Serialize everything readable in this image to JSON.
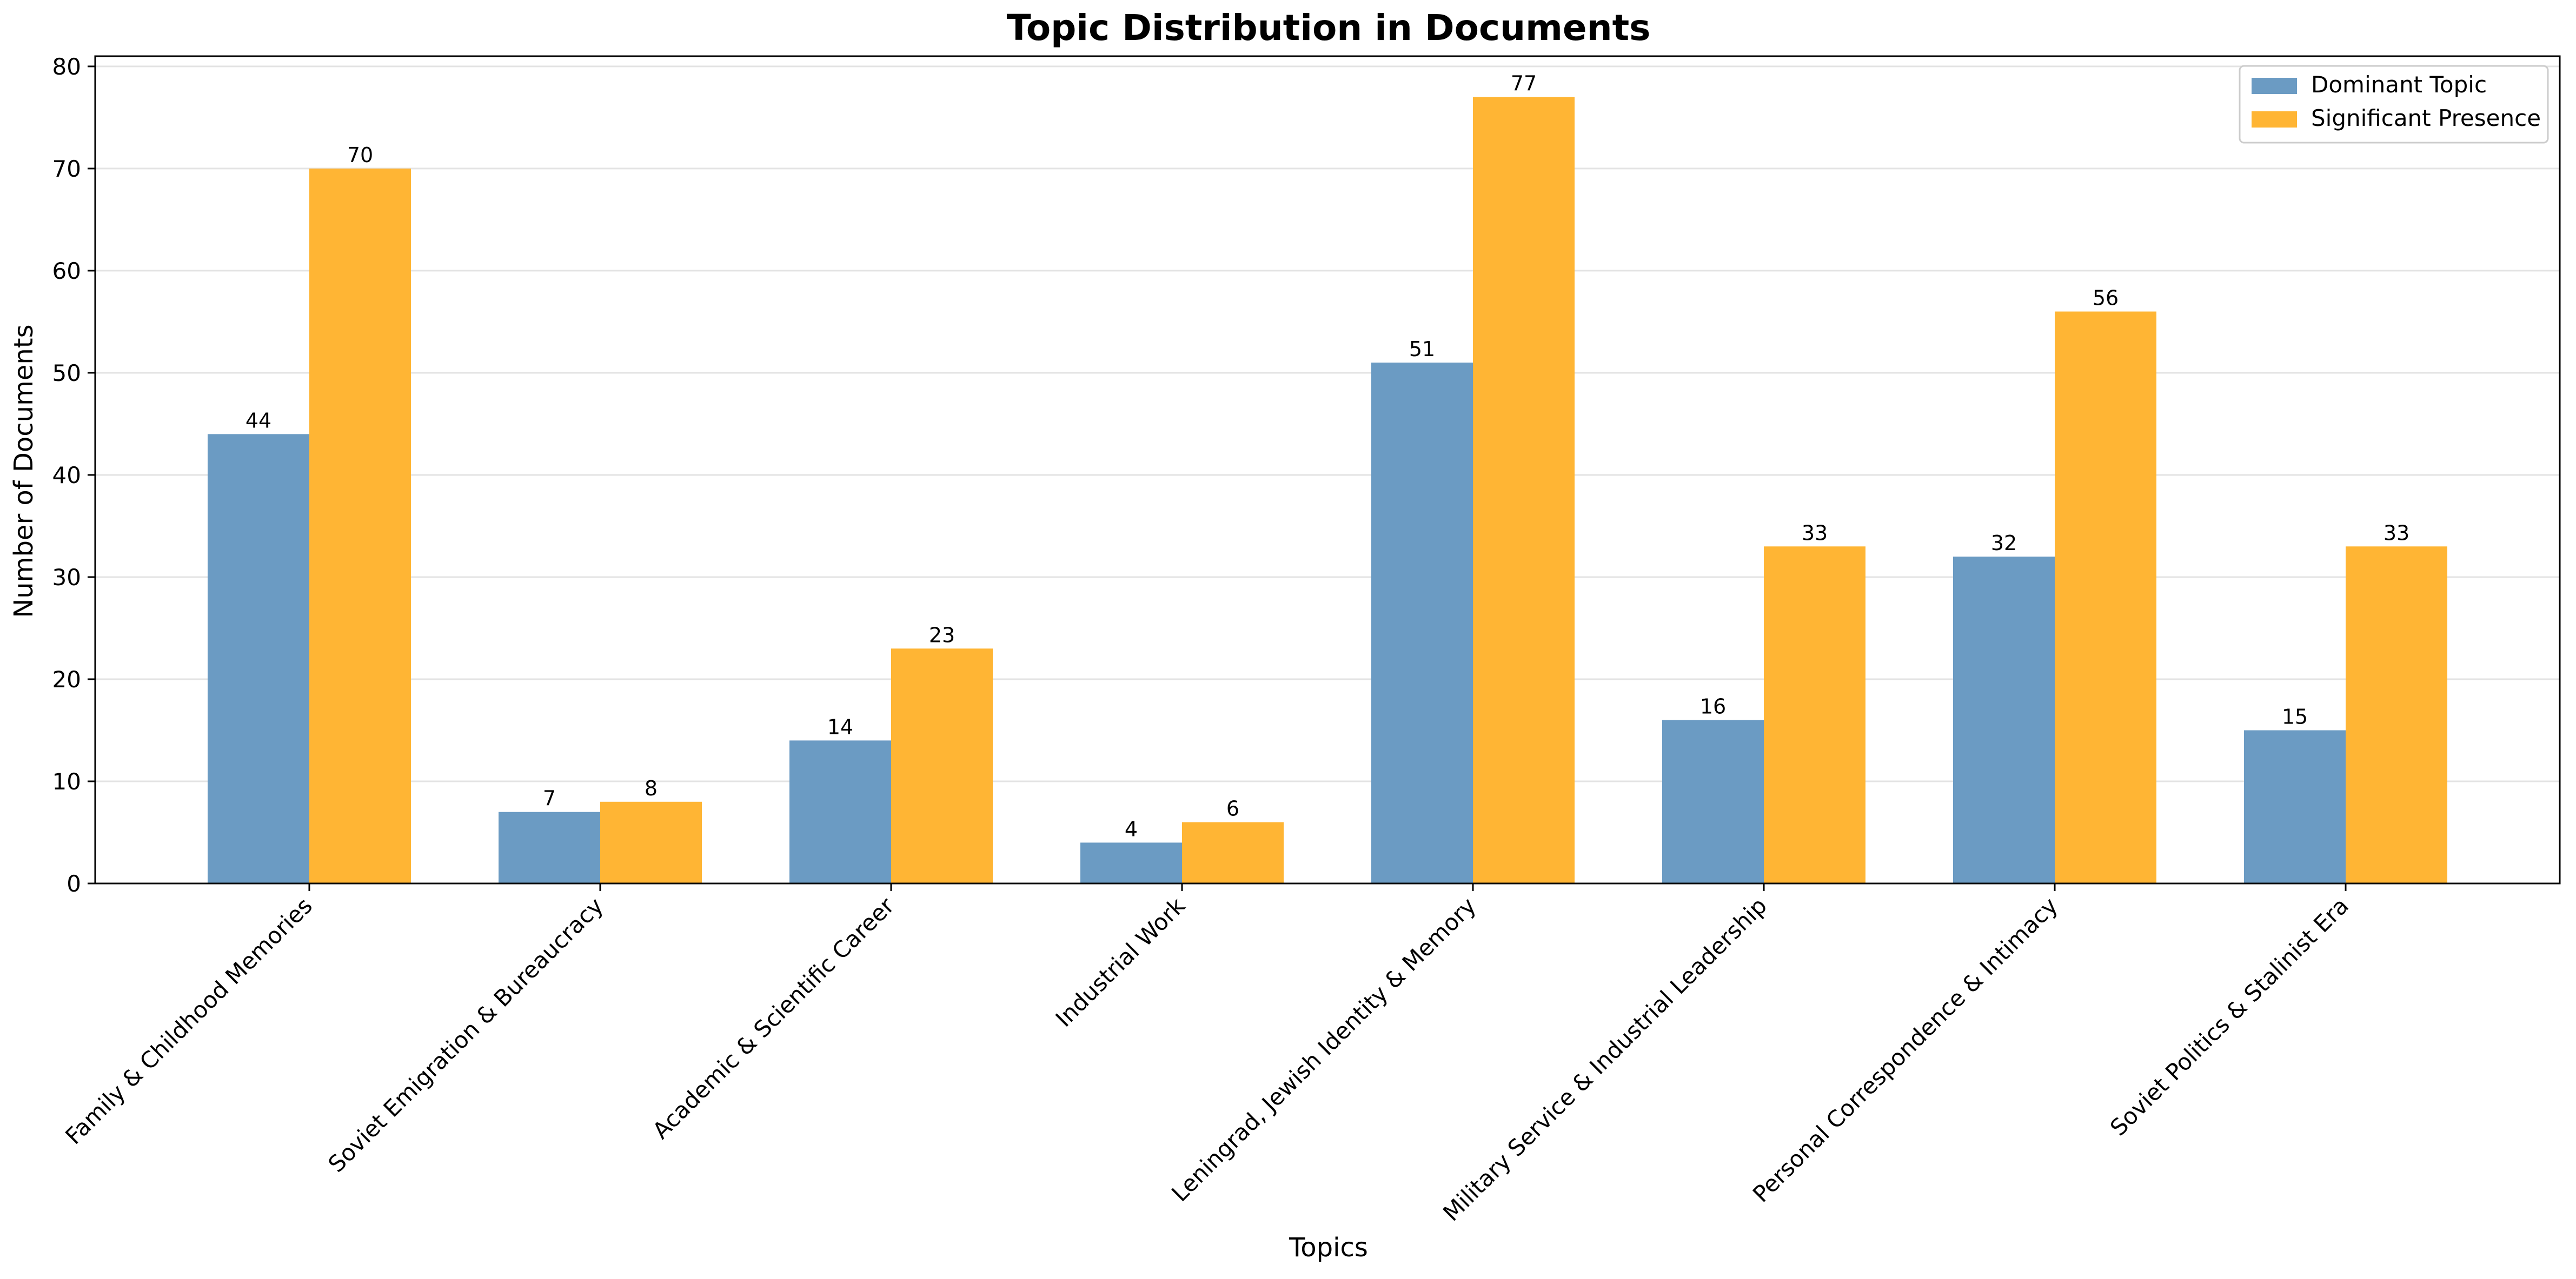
{
  "chart_data": {
    "type": "bar",
    "title": "Topic Distribution in Documents",
    "xlabel": "Topics",
    "ylabel": "Number of Documents",
    "ylim": [
      0,
      81
    ],
    "yticks": [
      0,
      10,
      20,
      30,
      40,
      50,
      60,
      70,
      80
    ],
    "grid": "horizontal",
    "legend_position": "top-right",
    "categories": [
      "Family & Childhood Memories",
      "Soviet Emigration & Bureaucracy",
      "Academic & Scientific Career",
      "Industrial Work",
      "Leningrad, Jewish Identity & Memory",
      "Military Service & Industrial Leadership",
      "Personal Correspondence & Intimacy",
      "Soviet Politics & Stalinist Era"
    ],
    "series": [
      {
        "name": "Dominant Topic",
        "color": "#6b9bc3",
        "values": [
          44,
          7,
          14,
          4,
          51,
          16,
          32,
          15
        ]
      },
      {
        "name": "Significant Presence",
        "color": "#ffb534",
        "values": [
          70,
          8,
          23,
          6,
          77,
          33,
          56,
          33
        ]
      }
    ]
  }
}
